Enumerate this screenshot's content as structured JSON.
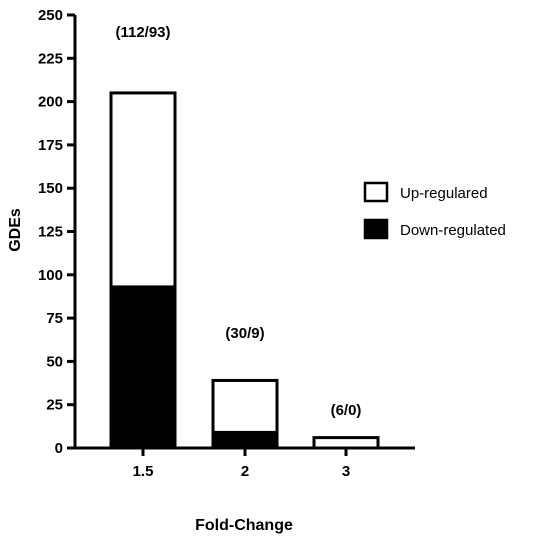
{
  "chart_data": {
    "type": "bar",
    "stacked": true,
    "categories": [
      "1.5",
      "2",
      "3"
    ],
    "series": [
      {
        "name": "Down-regulated",
        "values": [
          93,
          9,
          0
        ],
        "color": "#000000"
      },
      {
        "name": "Up-regulared",
        "values": [
          112,
          30,
          6
        ],
        "color": "#ffffff"
      }
    ],
    "data_labels": [
      "(112/93)",
      "(30/9)",
      "(6/0)"
    ],
    "xlabel": "Fold-Change",
    "ylabel": "GDEs",
    "ylim": [
      0,
      250
    ],
    "yticks": [
      0,
      25,
      50,
      75,
      100,
      125,
      150,
      175,
      200,
      225,
      250
    ],
    "grid": false,
    "legend_position": "right",
    "legend": [
      {
        "label": "Up-regulared",
        "color": "#ffffff"
      },
      {
        "label": "Down-regulated",
        "color": "#000000"
      }
    ]
  }
}
